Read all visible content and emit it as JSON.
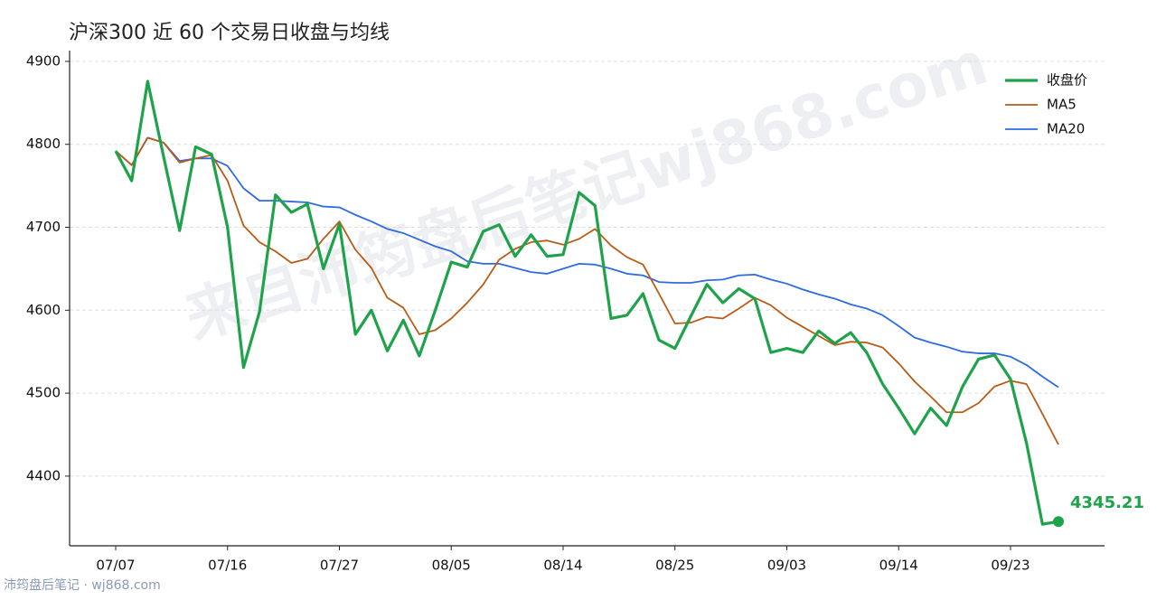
{
  "chart_data": {
    "type": "line",
    "title": "沪深300 近 60 个交易日收盘与均线",
    "watermark": "来自沛筠盘后笔记wj868.com",
    "source": "沛筠盘后笔记 · wj868.com",
    "categories": [
      "07/07",
      null,
      null,
      null,
      null,
      null,
      null,
      "07/16",
      null,
      null,
      null,
      null,
      null,
      null,
      "07/27",
      null,
      null,
      null,
      null,
      null,
      null,
      "08/05",
      null,
      null,
      null,
      null,
      null,
      null,
      "08/14",
      null,
      null,
      null,
      null,
      null,
      null,
      "08/25",
      null,
      null,
      null,
      null,
      null,
      null,
      "09/03",
      null,
      null,
      null,
      null,
      null,
      null,
      "09/14",
      null,
      null,
      null,
      null,
      null,
      null,
      "09/23",
      null,
      null,
      null
    ],
    "series": [
      {
        "name": "收盘价",
        "color": "#1fa34a",
        "width": 3.2,
        "values": [
          4792,
          4756,
          4876,
          4785,
          4696,
          4797,
          4788,
          4700,
          4531,
          4598,
          4739,
          4718,
          4728,
          4650,
          4704,
          4571,
          4600,
          4551,
          4588,
          4545,
          4600,
          4658,
          4652,
          4695,
          4703,
          4665,
          4691,
          4665,
          4667,
          4742,
          4726,
          4590,
          4594,
          4620,
          4564,
          4554,
          4593,
          4631,
          4609,
          4626,
          4614,
          4549,
          4554,
          4549,
          4575,
          4560,
          4573,
          4549,
          4511,
          4482,
          4451,
          4482,
          4461,
          4508,
          4541,
          4546,
          4517,
          4440,
          4342,
          4345.21
        ]
      },
      {
        "name": "MA5",
        "color": "#b85c16",
        "width": 1.8,
        "values": [
          4792,
          4775,
          4808,
          4802,
          4778,
          4783,
          4787,
          4756,
          4702,
          4682,
          4671,
          4657,
          4662,
          4686,
          4707,
          4673,
          4651,
          4615,
          4603,
          4571,
          4576,
          4590,
          4609,
          4631,
          4661,
          4674,
          4682,
          4684,
          4679,
          4686,
          4698,
          4678,
          4664,
          4655,
          4620,
          4584,
          4585,
          4592,
          4590,
          4602,
          4615,
          4606,
          4591,
          4580,
          4569,
          4558,
          4562,
          4561,
          4555,
          4536,
          4514,
          4496,
          4477,
          4477,
          4488,
          4508,
          4515,
          4511,
          4475,
          4438
        ]
      },
      {
        "name": "MA20",
        "color": "#2f6be0",
        "width": 1.8,
        "values": [
          4792,
          4775,
          4808,
          4802,
          4780,
          4783,
          4783,
          4774,
          4747,
          4732,
          4732,
          4731,
          4730,
          4725,
          4724,
          4715,
          4707,
          4698,
          4693,
          4685,
          4677,
          4671,
          4659,
          4656,
          4656,
          4651,
          4646,
          4644,
          4650,
          4656,
          4655,
          4650,
          4644,
          4642,
          4634,
          4633,
          4633,
          4636,
          4637,
          4642,
          4643,
          4637,
          4632,
          4625,
          4619,
          4614,
          4607,
          4602,
          4594,
          4581,
          4567,
          4561,
          4556,
          4550,
          4548,
          4548,
          4544,
          4534,
          4520,
          4507
        ]
      }
    ],
    "ylim": [
      4316,
      4913
    ],
    "yticks": [
      4400,
      4500,
      4600,
      4700,
      4800,
      4900
    ],
    "grid": true,
    "legend": "upper right"
  }
}
